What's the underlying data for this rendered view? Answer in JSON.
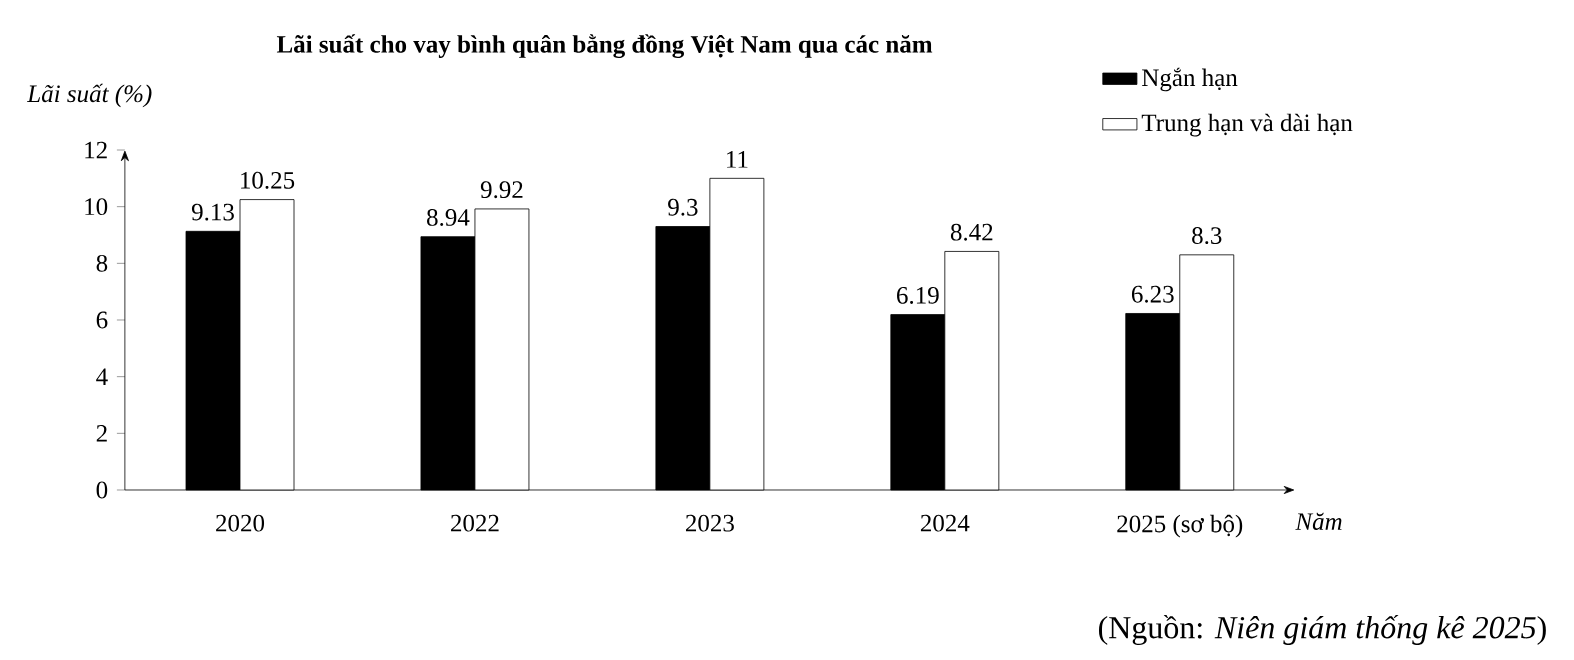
{
  "chart_data": {
    "type": "bar",
    "title": "Lãi suất cho vay bình quân bằng đồng Việt Nam qua các năm",
    "ylabel": "Lãi suất (%)",
    "xlabel": "Năm",
    "categories": [
      "2020",
      "2022",
      "2023",
      "2024",
      "2025 (sơ bộ)"
    ],
    "series": [
      {
        "name": "Ngắn hạn",
        "color": "#000000",
        "values": [
          9.13,
          8.94,
          9.3,
          6.19,
          6.23
        ]
      },
      {
        "name": "Trung hạn và dài hạn",
        "color": "#ffffff",
        "values": [
          10.25,
          9.92,
          11,
          8.42,
          8.3
        ]
      }
    ],
    "ylim": [
      0,
      12
    ],
    "yticks": [
      0,
      2,
      4,
      6,
      8,
      10,
      12
    ],
    "data_labels": true,
    "legend": "top right",
    "grid": false,
    "annotations": [
      "(Nguồn: *Niên giám thống kê 2025*)"
    ]
  }
}
